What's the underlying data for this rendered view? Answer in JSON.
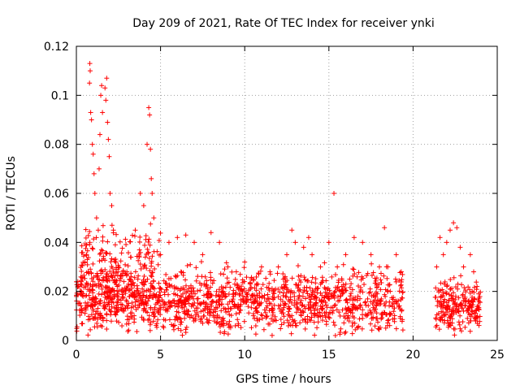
{
  "chart_data": {
    "type": "scatter",
    "title": "Day 209 of 2021, Rate Of TEC Index for receiver ynki",
    "xlabel": "GPS time / hours",
    "ylabel": "ROTI / TECUs",
    "xlim": [
      0,
      25
    ],
    "ylim": [
      0,
      0.12
    ],
    "x_ticks": [
      "0",
      "5",
      "10",
      "15",
      "20",
      "25"
    ],
    "y_ticks": [
      "0",
      "0.02",
      "0.04",
      "0.06",
      "0.08",
      "0.1",
      "0.12"
    ],
    "grid": true,
    "marker": "plus",
    "color": "#ff0000",
    "series": [
      {
        "name": "ROTI",
        "points": [
          [
            0.1,
            0.015
          ],
          [
            0.2,
            0.022
          ],
          [
            0.3,
            0.012
          ],
          [
            0.4,
            0.018
          ],
          [
            0.5,
            0.032
          ],
          [
            0.6,
            0.035
          ],
          [
            0.7,
            0.028
          ],
          [
            0.8,
            0.04
          ],
          [
            0.8,
            0.113
          ],
          [
            0.82,
            0.11
          ],
          [
            0.78,
            0.105
          ],
          [
            0.85,
            0.093
          ],
          [
            0.9,
            0.09
          ],
          [
            0.95,
            0.08
          ],
          [
            1.0,
            0.076
          ],
          [
            1.05,
            0.068
          ],
          [
            1.1,
            0.06
          ],
          [
            1.2,
            0.05
          ],
          [
            1.3,
            0.045
          ],
          [
            1.35,
            0.07
          ],
          [
            1.4,
            0.084
          ],
          [
            1.45,
            0.1
          ],
          [
            1.5,
            0.104
          ],
          [
            1.55,
            0.093
          ],
          [
            1.7,
            0.103
          ],
          [
            1.75,
            0.098
          ],
          [
            1.8,
            0.107
          ],
          [
            1.85,
            0.089
          ],
          [
            1.9,
            0.082
          ],
          [
            1.95,
            0.075
          ],
          [
            2.0,
            0.06
          ],
          [
            2.1,
            0.055
          ],
          [
            2.2,
            0.045
          ],
          [
            2.5,
            0.03
          ],
          [
            3.0,
            0.028
          ],
          [
            3.5,
            0.045
          ],
          [
            3.8,
            0.06
          ],
          [
            4.0,
            0.055
          ],
          [
            4.2,
            0.08
          ],
          [
            4.3,
            0.095
          ],
          [
            4.35,
            0.092
          ],
          [
            4.4,
            0.078
          ],
          [
            4.45,
            0.066
          ],
          [
            4.5,
            0.06
          ],
          [
            4.6,
            0.05
          ],
          [
            5.0,
            0.035
          ],
          [
            5.5,
            0.04
          ],
          [
            6.0,
            0.042
          ],
          [
            6.5,
            0.043
          ],
          [
            7.0,
            0.04
          ],
          [
            7.5,
            0.035
          ],
          [
            8.0,
            0.044
          ],
          [
            8.5,
            0.04
          ],
          [
            9.0,
            0.03
          ],
          [
            9.5,
            0.028
          ],
          [
            10.0,
            0.032
          ],
          [
            10.5,
            0.025
          ],
          [
            11.0,
            0.03
          ],
          [
            11.5,
            0.028
          ],
          [
            12.0,
            0.03
          ],
          [
            12.5,
            0.035
          ],
          [
            12.8,
            0.045
          ],
          [
            13.0,
            0.04
          ],
          [
            13.5,
            0.038
          ],
          [
            13.8,
            0.042
          ],
          [
            14.0,
            0.035
          ],
          [
            14.5,
            0.03
          ],
          [
            15.0,
            0.04
          ],
          [
            15.3,
            0.06
          ],
          [
            15.5,
            0.03
          ],
          [
            16.0,
            0.035
          ],
          [
            16.5,
            0.042
          ],
          [
            17.0,
            0.04
          ],
          [
            17.5,
            0.035
          ],
          [
            18.0,
            0.03
          ],
          [
            18.3,
            0.046
          ],
          [
            18.5,
            0.03
          ],
          [
            19.0,
            0.035
          ],
          [
            19.3,
            0.028
          ],
          [
            21.4,
            0.03
          ],
          [
            21.6,
            0.042
          ],
          [
            21.8,
            0.035
          ],
          [
            22.0,
            0.04
          ],
          [
            22.2,
            0.045
          ],
          [
            22.4,
            0.048
          ],
          [
            22.6,
            0.046
          ],
          [
            22.8,
            0.038
          ],
          [
            23.0,
            0.03
          ],
          [
            23.4,
            0.035
          ],
          [
            23.6,
            0.028
          ],
          [
            23.8,
            0.022
          ]
        ]
      }
    ]
  }
}
